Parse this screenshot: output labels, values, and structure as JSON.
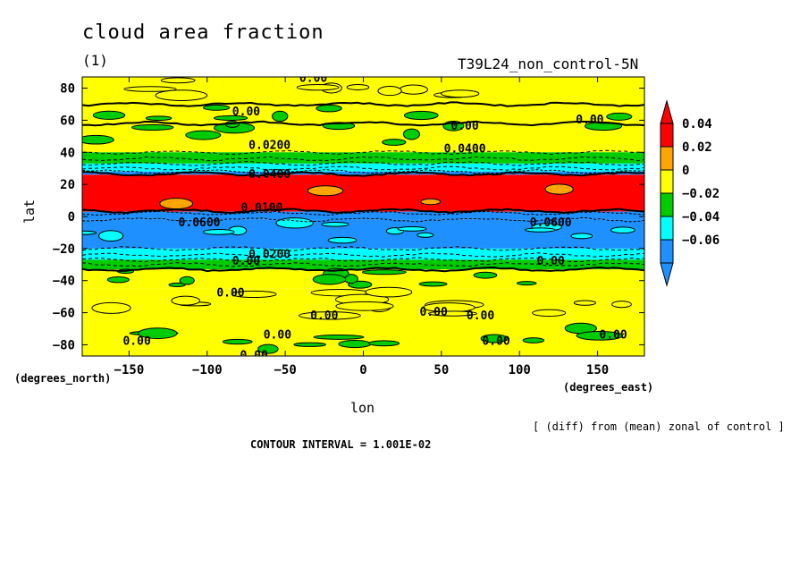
{
  "chart_data": {
    "type": "heatmap",
    "title": "cloud area fraction",
    "panel_label": "(1)",
    "experiment": "T39L24_non_control-5N",
    "xlabel": "lon",
    "ylabel": "lat",
    "x_units": "(degrees_east)",
    "y_units": "(degrees_north)",
    "xlim": [
      -180,
      180
    ],
    "ylim": [
      -87,
      87
    ],
    "x_ticks": [
      -150,
      -100,
      -50,
      0,
      50,
      100,
      150
    ],
    "y_ticks": [
      80,
      60,
      40,
      20,
      0,
      -20,
      -40,
      -60,
      -80
    ],
    "colorbar": {
      "levels": [
        "0.04",
        "0.02",
        "0",
        "-0.02",
        "-0.04",
        "-0.06"
      ],
      "colors": [
        "#ff0000",
        "#ffa500",
        "#ffff00",
        "#00cc00",
        "#00ffff",
        "#1e90ff"
      ]
    },
    "zonal_bands": [
      {
        "lat_from": 87,
        "lat_to": 70,
        "value": 0.0
      },
      {
        "lat_from": 70,
        "lat_to": 58,
        "value": 0.0
      },
      {
        "lat_from": 58,
        "lat_to": 40,
        "value": 0.01
      },
      {
        "lat_from": 40,
        "lat_to": 33,
        "value": -0.01
      },
      {
        "lat_from": 33,
        "lat_to": 28,
        "value": -0.03
      },
      {
        "lat_from": 28,
        "lat_to": 26,
        "value": -0.05
      },
      {
        "lat_from": 26,
        "lat_to": 3,
        "value": 0.05
      },
      {
        "lat_from": 3,
        "lat_to": -2,
        "value": -0.07
      },
      {
        "lat_from": -2,
        "lat_to": -20,
        "value": -0.05
      },
      {
        "lat_from": -20,
        "lat_to": -27,
        "value": -0.03
      },
      {
        "lat_from": -27,
        "lat_to": -33,
        "value": -0.01
      },
      {
        "lat_from": -33,
        "lat_to": -45,
        "value": 0.01
      },
      {
        "lat_from": -45,
        "lat_to": -65,
        "value": 0.0
      },
      {
        "lat_from": -65,
        "lat_to": -87,
        "value": 0.01
      }
    ],
    "contour_labels": [
      "0.00",
      "0.00",
      "0.00",
      "0.00",
      "0.0200",
      "0.0400",
      "0.0100",
      "0.0400",
      "0.0600",
      "0.0600",
      "0.0200",
      "0.00",
      "0.00",
      "0.00",
      "0.00",
      "0.00",
      "0.00",
      "0.00",
      "0.00",
      "0.00",
      "0.00",
      "0.00"
    ],
    "contour_interval_text": "CONTOUR INTERVAL = 1.001E-02",
    "note": "[ (diff) from (mean) zonal of control ]"
  }
}
